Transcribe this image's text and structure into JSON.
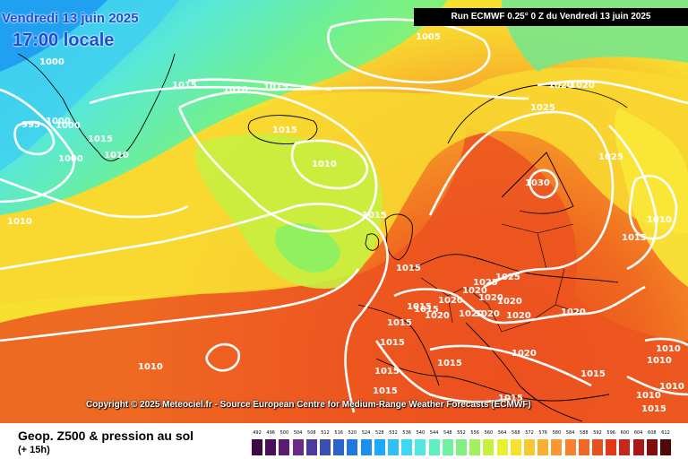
{
  "header": {
    "date": "Vendredi 13 juin 2025",
    "local_time": "17:00 locale",
    "run_info": "Run ECMWF 0.25° 0 Z du Vendredi 13 juin 2025"
  },
  "copyright": "Copyright © 2025 Meteociel.fr - Source European Centre for Medium-Range Weather Forecasts (ECMWF)",
  "footer": {
    "field": "Geop. Z500 & pression au sol",
    "lead": "(+ 15h)"
  },
  "legend": {
    "values": [
      "492",
      "496",
      "500",
      "504",
      "508",
      "512",
      "516",
      "520",
      "524",
      "528",
      "532",
      "536",
      "540",
      "544",
      "548",
      "552",
      "556",
      "560",
      "564",
      "568",
      "572",
      "576",
      "580",
      "584",
      "588",
      "592",
      "596",
      "600",
      "604",
      "608",
      "612"
    ],
    "colors": [
      "#3b0a45",
      "#4a0f5c",
      "#5c1a73",
      "#6a2a8a",
      "#4b3b9a",
      "#3b4fb0",
      "#2e62c8",
      "#1f78e0",
      "#1a90f0",
      "#20a8f8",
      "#30c0f8",
      "#40d8f0",
      "#50e8e0",
      "#60f0c0",
      "#70f0a0",
      "#80f080",
      "#a0f060",
      "#c8f040",
      "#e8f030",
      "#f8e030",
      "#f8c830",
      "#f8b030",
      "#f89830",
      "#f88030",
      "#f06828",
      "#e85020",
      "#e03818",
      "#c82818",
      "#a81818",
      "#801010",
      "#500808"
    ]
  },
  "colors": {
    "title_blue": "#1e4cd8",
    "isobar": "#ffffff"
  },
  "isobar_labels": [
    "1005",
    "1000",
    "1010",
    "995",
    "1000",
    "1000",
    "1000",
    "1015",
    "1010",
    "1015",
    "1015",
    "1015",
    "1015",
    "1010",
    "1010",
    "1015",
    "1020",
    "1020",
    "1025",
    "1025",
    "1030",
    "1010",
    "1015",
    "1015",
    "1025",
    "1025",
    "1020",
    "1020",
    "1020",
    "1015",
    "1020",
    "1020",
    "1020",
    "1020",
    "1020",
    "1015",
    "1015",
    "1015",
    "1015",
    "1015",
    "1020",
    "1020",
    "1015",
    "1015",
    "1010",
    "1010",
    "1010",
    "1010",
    "1015",
    "1010"
  ]
}
